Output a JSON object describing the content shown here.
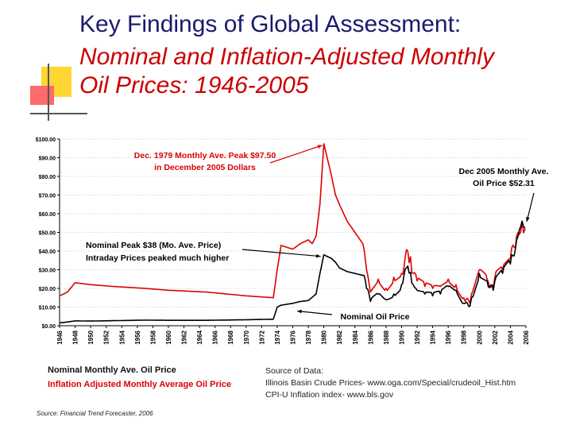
{
  "slide": {
    "title_line1": "Key Findings of Global Assessment:",
    "title_line2": "Nominal and Inflation-Adjusted Monthly",
    "title_line3": "Oil Prices: 1946-2005",
    "footnote": "Source: Financial Trend Forecaster, 2006"
  },
  "legend": {
    "nominal": "Nominal Monthly Ave. Oil Price",
    "adjusted": "Inflation Adjusted Monthly Average Oil Price"
  },
  "source": {
    "heading": "Source of Data:",
    "line1": "Illinois Basin Crude Prices- www.oga.com/Special/crudeoil_Hist.htm",
    "line2": "CPI-U Inflation index- www.bls.gov"
  },
  "colors": {
    "nominal": "#000000",
    "adjusted": "#dd0000",
    "title_blue": "#1a1a6e",
    "title_red": "#cc0000"
  },
  "chart_data": {
    "type": "line",
    "title": "Nominal and Inflation-Adjusted Monthly Oil Prices: 1946-2005",
    "xlabel": "",
    "ylabel": "",
    "xlim": [
      1946,
      2006
    ],
    "ylim": [
      0,
      100
    ],
    "y_ticks": [
      "$0.00",
      "$10.00",
      "$20.00",
      "$30.00",
      "$40.00",
      "$50.00",
      "$60.00",
      "$70.00",
      "$80.00",
      "$90.00",
      "$100.00"
    ],
    "x_ticks": [
      "1946",
      "1948",
      "1950",
      "1952",
      "1954",
      "1956",
      "1958",
      "1960",
      "1962",
      "1964",
      "1966",
      "1968",
      "1970",
      "1972",
      "1974",
      "1976",
      "1978",
      "1980",
      "1982",
      "1984",
      "1986",
      "1988",
      "1990",
      "1992",
      "1994",
      "1996",
      "1998",
      "2000",
      "2002",
      "2004",
      "2006"
    ],
    "series": [
      {
        "name": "Inflation Adjusted Monthly Average Oil Price",
        "color": "#dd0000",
        "x": [
          1946,
          1947,
          1948,
          1950,
          1953,
          1957,
          1960,
          1965,
          1970,
          1973.5,
          1974,
          1974.5,
          1976,
          1977,
          1978,
          1978.5,
          1979,
          1979.5,
          1980,
          1981,
          1981.5,
          1982,
          1983,
          1984,
          1985,
          1985.5,
          1986,
          1987,
          1988,
          1989,
          1990,
          1990.8,
          1991.5,
          1992,
          1993,
          1994,
          1995,
          1996,
          1997,
          1998,
          1998.8,
          1999,
          2000,
          2001,
          2001.8,
          2002,
          2003,
          2004,
          2004.8,
          2005,
          2005.5,
          2005.9
        ],
        "values": [
          16,
          18,
          23,
          22,
          21,
          20,
          19,
          18,
          16,
          15,
          30,
          43,
          41,
          44,
          46,
          44,
          48,
          65,
          97.5,
          80,
          70,
          65,
          56,
          50,
          44,
          30,
          18,
          25,
          20,
          26,
          28,
          40,
          28,
          24,
          21,
          20,
          21,
          25,
          22,
          15,
          12,
          17,
          30,
          25,
          20,
          26,
          30,
          36,
          48,
          50,
          56,
          52
        ]
      },
      {
        "name": "Nominal Monthly Ave. Oil Price",
        "color": "#000000",
        "x": [
          1946,
          1947,
          1948,
          1950,
          1957,
          1960,
          1965,
          1970,
          1973.5,
          1974,
          1974.5,
          1976,
          1977,
          1978,
          1979,
          1979.5,
          1980,
          1981,
          1981.5,
          1982,
          1983,
          1984,
          1985,
          1985.5,
          1986,
          1987,
          1988,
          1989,
          1990,
          1990.8,
          1991.5,
          1992,
          1993,
          1994,
          1995,
          1996,
          1997,
          1998,
          1998.8,
          1999,
          2000,
          2001,
          2001.8,
          2002,
          2003,
          2004,
          2004.8,
          2005,
          2005.5,
          2005.9
        ],
        "values": [
          1.5,
          2,
          2.6,
          2.5,
          3,
          2.9,
          2.9,
          3.2,
          3.5,
          10,
          11,
          12,
          13,
          13.5,
          17,
          28,
          38,
          36,
          34,
          31,
          29,
          28,
          27,
          20,
          13,
          17,
          14,
          17,
          22,
          32,
          22,
          19,
          17,
          16,
          17,
          21,
          19,
          12,
          10.5,
          15,
          28,
          24,
          19,
          24,
          28,
          33,
          46,
          48,
          56,
          52.31
        ]
      }
    ],
    "annotations": [
      {
        "text_line1": "Dec. 1979 Monthly Ave. Peak $97.50",
        "text_line2": "in December 2005 Dollars",
        "color": "#dd0000",
        "x": 1980,
        "y": 97.5
      },
      {
        "text_line1": "Dec 2005 Monthly Ave.",
        "text_line2": "Oil Price $52.31",
        "color": "#000000",
        "x": 2005.9,
        "y": 52.31
      },
      {
        "text_line1": "Nominal Peak $38 (Mo. Ave. Price)",
        "text_line2": "Intraday Prices peaked much higher",
        "color": "#000000",
        "x": 1980,
        "y": 38
      },
      {
        "text_line1": "Nominal Oil Price",
        "text_line2": "",
        "color": "#000000",
        "x": 1978,
        "y": 7
      }
    ]
  }
}
